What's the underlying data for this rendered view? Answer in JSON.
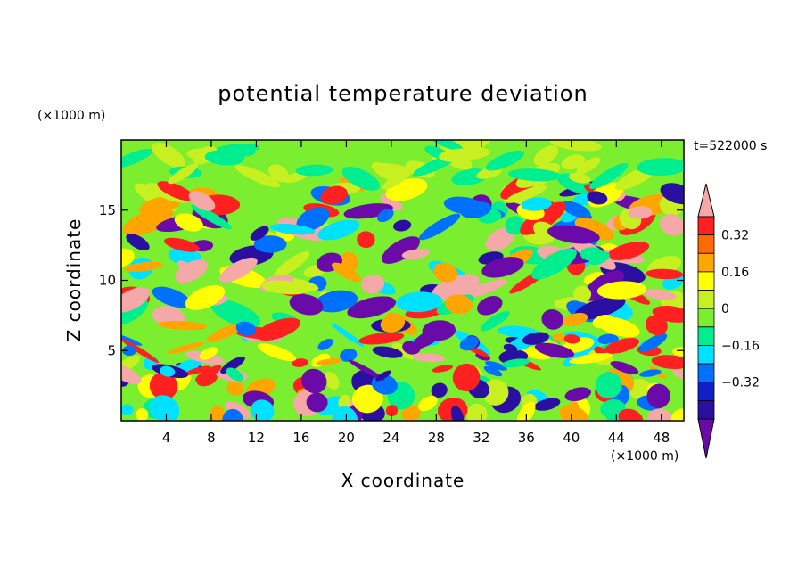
{
  "chart_data": {
    "type": "heatmap",
    "title": "potential temperature deviation",
    "xlabel": "X coordinate",
    "ylabel": "Z coordinate",
    "x_unit": "(×1000 m)",
    "y_unit": "(×1000 m)",
    "time_label": "t=522000 s",
    "xlim": [
      0,
      50
    ],
    "ylim": [
      0,
      20
    ],
    "x_ticks": [
      4,
      8,
      12,
      16,
      20,
      24,
      28,
      32,
      36,
      40,
      44,
      48
    ],
    "y_ticks": [
      5,
      10,
      15
    ],
    "colorbar": {
      "levels": [
        -0.48,
        -0.4,
        -0.32,
        -0.24,
        -0.16,
        -0.08,
        0,
        0.08,
        0.16,
        0.24,
        0.32,
        0.4,
        0.48
      ],
      "colors": [
        "#6a0aa8",
        "#2a0fa0",
        "#1020c8",
        "#0070ff",
        "#00e0ff",
        "#00ee90",
        "#7cee30",
        "#c8f020",
        "#ffff00",
        "#ffa500",
        "#ff6a00",
        "#ff2020",
        "#f4a8a8"
      ],
      "tick_labels": [
        "0.32",
        "0.16",
        "0",
        "−0.16",
        "−0.32"
      ],
      "tick_values": [
        0.32,
        0.16,
        0,
        -0.16,
        -0.32
      ]
    }
  }
}
